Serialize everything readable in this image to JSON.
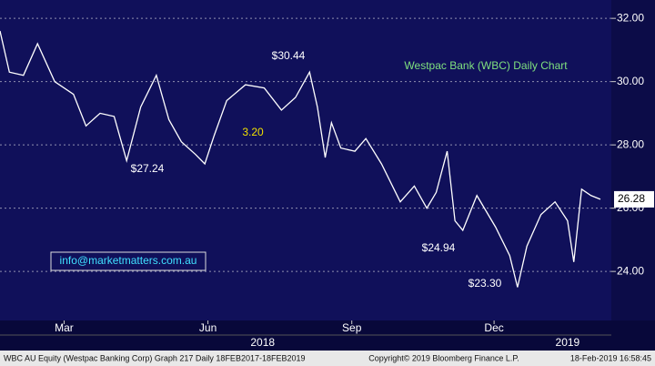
{
  "chart_data": {
    "type": "line",
    "title": "Westpac Bank (WBC) Daily Chart",
    "x": [
      -30,
      -24,
      -15,
      -6,
      5,
      17,
      25,
      34,
      43,
      51,
      60,
      70,
      78,
      86,
      95,
      101,
      107,
      115,
      127,
      139,
      150,
      159,
      168,
      173,
      178,
      182,
      188,
      197,
      204,
      214,
      226,
      235,
      243,
      249,
      256,
      261,
      266,
      275,
      287,
      296,
      301,
      307,
      316,
      325,
      333,
      337,
      342,
      348,
      354
    ],
    "series": [
      {
        "name": "WBC AU Equity",
        "color": "#ffffff",
        "values": [
          31.6,
          30.3,
          30.2,
          31.2,
          30.0,
          29.6,
          28.6,
          29.0,
          28.9,
          27.5,
          29.2,
          30.2,
          28.8,
          28.1,
          27.7,
          27.4,
          28.3,
          29.4,
          29.9,
          29.8,
          29.1,
          29.5,
          30.3,
          29.2,
          27.6,
          28.7,
          27.9,
          27.8,
          28.2,
          27.4,
          26.2,
          26.7,
          26.0,
          26.5,
          27.8,
          25.6,
          25.3,
          26.4,
          25.4,
          24.5,
          23.5,
          24.8,
          25.8,
          26.2,
          25.6,
          24.3,
          26.6,
          26.4,
          26.28
        ]
      }
    ],
    "xlim": [
      -30,
      361
    ],
    "xticks": [
      {
        "value": 11,
        "label": "Mar"
      },
      {
        "value": 103,
        "label": "Jun"
      },
      {
        "value": 195,
        "label": "Sep"
      },
      {
        "value": 286,
        "label": "Dec"
      }
    ],
    "year_ticks": [
      {
        "value": 138,
        "label": "2018"
      },
      {
        "value": 333,
        "label": "2019"
      }
    ],
    "ylim": [
      22.45,
      32.58
    ],
    "yticks": [
      {
        "value": 32,
        "label": "32.00"
      },
      {
        "value": 30,
        "label": "30.00"
      },
      {
        "value": 28,
        "label": "28.00"
      },
      {
        "value": 26,
        "label": "26.00"
      },
      {
        "value": 24,
        "label": "24.00"
      }
    ],
    "grid": true,
    "last_price": 26.28,
    "annotations": [
      "$30.44",
      "3.20",
      "$27.24",
      "$24.94",
      "$23.30"
    ],
    "contact": "info@marketmatters.com.au",
    "footer": [
      "WBC AU Equity (Westpac Banking Corp) Graph 217  Daily 18FEB2017-18FEB2019",
      "Copyright© 2019 Bloomberg Finance L.P.",
      "18-Feb-2019 16:58:45"
    ]
  }
}
